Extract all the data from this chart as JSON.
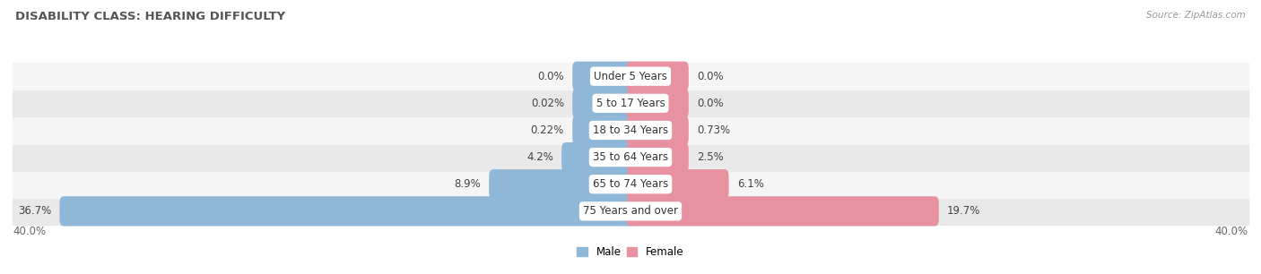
{
  "title": "DISABILITY CLASS: HEARING DIFFICULTY",
  "source": "Source: ZipAtlas.com",
  "categories": [
    "Under 5 Years",
    "5 to 17 Years",
    "18 to 34 Years",
    "35 to 64 Years",
    "65 to 74 Years",
    "75 Years and over"
  ],
  "male_values": [
    0.0,
    0.02,
    0.22,
    4.2,
    8.9,
    36.7
  ],
  "female_values": [
    0.0,
    0.0,
    0.73,
    2.5,
    6.1,
    19.7
  ],
  "male_labels": [
    "0.0%",
    "0.02%",
    "0.22%",
    "4.2%",
    "8.9%",
    "36.7%"
  ],
  "female_labels": [
    "0.0%",
    "0.0%",
    "0.73%",
    "2.5%",
    "6.1%",
    "19.7%"
  ],
  "male_color": "#8fb8d8",
  "female_color": "#e891a0",
  "max_val": 40.0,
  "min_bar_width": 3.5,
  "bar_height": 0.58,
  "row_colors": [
    "#f5f5f5",
    "#e9e9e9"
  ],
  "title_fontsize": 9.5,
  "label_fontsize": 8.5,
  "category_fontsize": 8.5,
  "source_fontsize": 7.5
}
